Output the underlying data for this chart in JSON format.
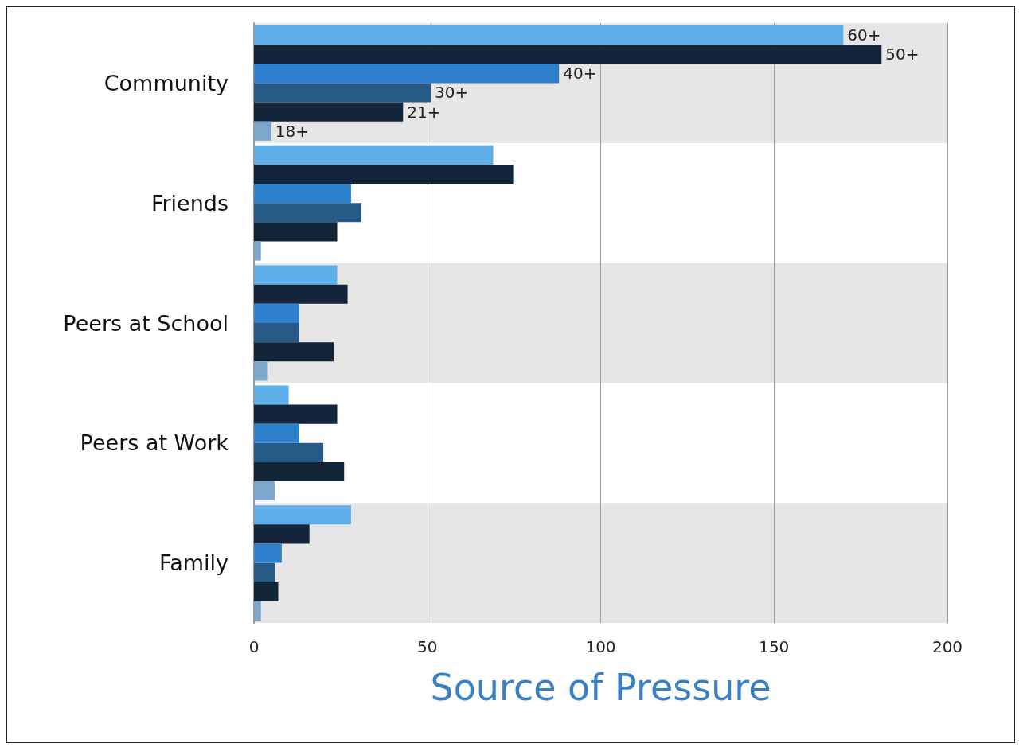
{
  "chart_data": {
    "type": "bar",
    "orientation": "horizontal",
    "xlabel": "Source of Pressure",
    "categories": [
      "Community",
      "Friends",
      "Peers at School",
      "Peers at Work",
      "Family"
    ],
    "series": [
      {
        "name": "60+",
        "color": "#5eaeea",
        "values": [
          170,
          69,
          24,
          10,
          28
        ]
      },
      {
        "name": "50+",
        "color": "#14253b",
        "values": [
          181,
          75,
          27,
          24,
          16
        ]
      },
      {
        "name": "40+",
        "color": "#2d80cc",
        "values": [
          88,
          28,
          13,
          13,
          8
        ]
      },
      {
        "name": "30+",
        "color": "#285a88",
        "values": [
          51,
          31,
          13,
          20,
          6
        ]
      },
      {
        "name": "21+",
        "color": "#132539",
        "values": [
          43,
          24,
          23,
          26,
          7
        ]
      },
      {
        "name": "18+",
        "color": "#7ca6cc",
        "values": [
          5,
          2,
          4,
          6,
          2
        ]
      }
    ],
    "xlim": [
      0,
      200
    ],
    "xticks": [
      0,
      50,
      100,
      150,
      200
    ],
    "grid": "x",
    "legend": false
  }
}
